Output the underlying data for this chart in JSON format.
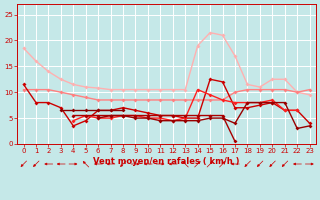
{
  "x": [
    0,
    1,
    2,
    3,
    4,
    5,
    6,
    7,
    8,
    9,
    10,
    11,
    12,
    13,
    14,
    15,
    16,
    17,
    18,
    19,
    20,
    21,
    22,
    23
  ],
  "series": [
    {
      "color": "#FFB0B0",
      "lw": 1.0,
      "y": [
        18.5,
        16.0,
        14.0,
        12.5,
        11.5,
        11.0,
        10.8,
        10.5,
        10.5,
        10.5,
        10.5,
        10.5,
        10.5,
        10.5,
        19.0,
        21.5,
        21.0,
        17.0,
        11.5,
        11.0,
        12.5,
        12.5,
        10.0,
        9.5
      ]
    },
    {
      "color": "#FF8080",
      "lw": 1.0,
      "y": [
        10.5,
        10.5,
        10.5,
        10.0,
        9.5,
        9.0,
        8.5,
        8.5,
        8.5,
        8.5,
        8.5,
        8.5,
        8.5,
        8.5,
        8.5,
        8.5,
        8.5,
        10.0,
        10.5,
        10.5,
        10.5,
        10.5,
        10.0,
        10.5
      ]
    },
    {
      "color": "#CC0000",
      "lw": 1.0,
      "y": [
        11.5,
        8.0,
        8.0,
        7.0,
        3.5,
        4.5,
        6.5,
        6.5,
        7.0,
        6.5,
        6.0,
        5.5,
        5.5,
        5.0,
        5.0,
        12.5,
        12.0,
        7.0,
        7.0,
        7.5,
        8.0,
        6.5,
        6.5,
        4.0
      ]
    },
    {
      "color": "#FF2020",
      "lw": 1.0,
      "y": [
        null,
        null,
        null,
        null,
        4.5,
        5.5,
        5.0,
        5.0,
        5.5,
        5.5,
        5.0,
        5.0,
        4.5,
        5.0,
        10.5,
        9.5,
        8.5,
        8.0,
        8.0,
        8.0,
        8.5,
        6.5,
        6.5,
        null
      ]
    },
    {
      "color": "#AA0000",
      "lw": 1.0,
      "y": [
        null,
        null,
        null,
        null,
        5.5,
        5.5,
        5.5,
        5.5,
        5.5,
        5.5,
        5.5,
        5.5,
        5.5,
        5.5,
        5.5,
        5.5,
        5.5,
        0.5,
        null,
        null,
        null,
        null,
        null,
        null
      ]
    },
    {
      "color": "#880000",
      "lw": 1.0,
      "y": [
        null,
        null,
        null,
        6.5,
        6.5,
        6.5,
        6.5,
        6.5,
        6.5,
        null,
        null,
        null,
        null,
        null,
        null,
        null,
        null,
        null,
        null,
        null,
        null,
        null,
        null,
        null
      ]
    },
    {
      "color": "#990000",
      "lw": 1.0,
      "y": [
        null,
        null,
        null,
        null,
        null,
        null,
        5.0,
        5.5,
        5.5,
        5.0,
        5.0,
        4.5,
        4.5,
        4.5,
        4.5,
        5.0,
        5.0,
        4.0,
        8.0,
        8.0,
        8.0,
        8.0,
        3.0,
        3.5
      ]
    }
  ],
  "bg_color": "#C5E8E8",
  "grid_color": "#FFFFFF",
  "tick_color": "#CC0000",
  "label_color": "#CC0000",
  "ylim": [
    0,
    27
  ],
  "xlim": [
    -0.5,
    23.5
  ],
  "yticks": [
    0,
    5,
    10,
    15,
    20,
    25
  ],
  "xticks": [
    0,
    1,
    2,
    3,
    4,
    5,
    6,
    7,
    8,
    9,
    10,
    11,
    12,
    13,
    14,
    15,
    16,
    17,
    18,
    19,
    20,
    21,
    22,
    23
  ],
  "xlabel": "Vent moyen/en rafales ( km/h )",
  "wind_angles": [
    225,
    225,
    270,
    270,
    90,
    315,
    270,
    270,
    225,
    90,
    270,
    90,
    270,
    315,
    45,
    45,
    45,
    270,
    225,
    225,
    225,
    225,
    270,
    90
  ]
}
